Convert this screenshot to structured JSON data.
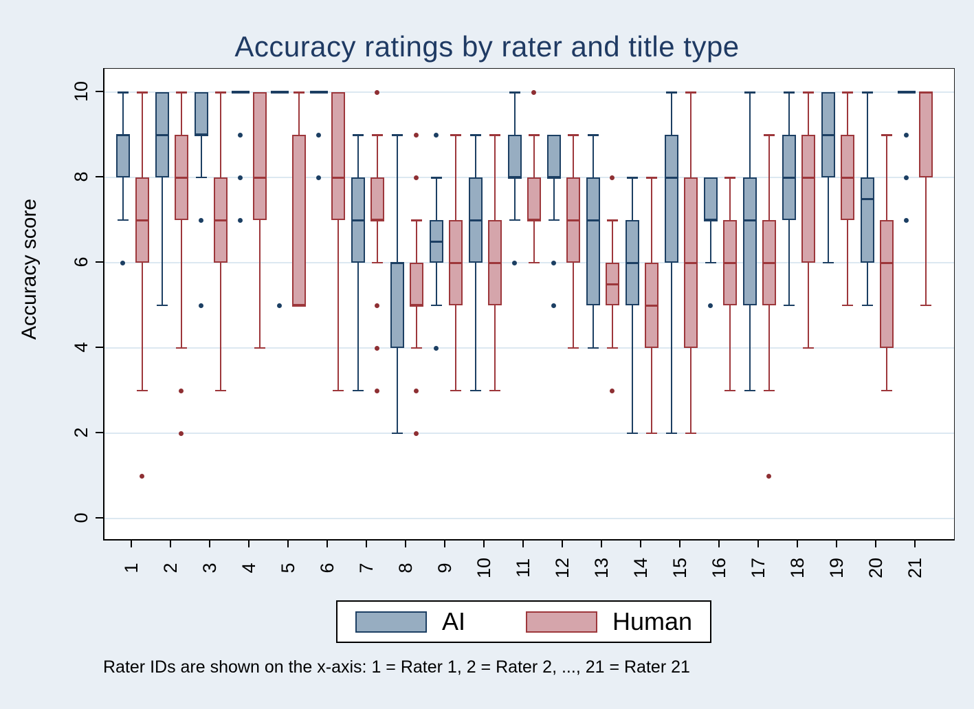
{
  "caption": "Rater IDs are shown on the x-axis: 1 = Rater 1, 2 = Rater 2, ..., 21 = Rater 21",
  "chart_data": {
    "type": "boxplot",
    "title": "Accuracy ratings by rater and title type",
    "ylabel": "Accuracy score",
    "xlabel": "",
    "ylim": [
      0,
      10
    ],
    "yticks": [
      0,
      2,
      4,
      6,
      8,
      10
    ],
    "grid": true,
    "legend_position": "bottom-center",
    "categories": [
      "1",
      "2",
      "3",
      "4",
      "5",
      "6",
      "7",
      "8",
      "9",
      "10",
      "11",
      "12",
      "13",
      "14",
      "15",
      "16",
      "17",
      "18",
      "19",
      "20",
      "21"
    ],
    "series": [
      {
        "name": "AI",
        "fill": "#97adc1",
        "line": "#1c3f63",
        "dot": "#1c3f63"
      },
      {
        "name": "Human",
        "fill": "#d5a5ab",
        "line": "#9d373b",
        "dot": "#8e2f33"
      }
    ],
    "colors": {
      "page_background": "#e9eff5",
      "plot_background": "#ffffff",
      "gridline": "#dce8f1",
      "title_text": "#1f3a63"
    },
    "boxes": [
      {
        "rater": "1",
        "ai": {
          "lo": 7,
          "q1": 8,
          "med": 9,
          "q3": 9,
          "hi": 10,
          "out": [
            6
          ]
        },
        "human": {
          "lo": 3,
          "q1": 6,
          "med": 7,
          "q3": 8,
          "hi": 10,
          "out": [
            1
          ]
        }
      },
      {
        "rater": "2",
        "ai": {
          "lo": 5,
          "q1": 8,
          "med": 9,
          "q3": 10,
          "hi": 10,
          "out": []
        },
        "human": {
          "lo": 4,
          "q1": 7,
          "med": 8,
          "q3": 9,
          "hi": 10,
          "out": [
            3,
            2
          ]
        }
      },
      {
        "rater": "3",
        "ai": {
          "lo": 8,
          "q1": 9,
          "med": 9,
          "q3": 10,
          "hi": 10,
          "out": [
            7,
            5
          ]
        },
        "human": {
          "lo": 3,
          "q1": 6,
          "med": 7,
          "q3": 8,
          "hi": 10,
          "out": []
        }
      },
      {
        "rater": "4",
        "ai": {
          "lo": 10,
          "q1": 10,
          "med": 10,
          "q3": 10,
          "hi": 10,
          "out": [
            9,
            8,
            7
          ]
        },
        "human": {
          "lo": 4,
          "q1": 7,
          "med": 8,
          "q3": 10,
          "hi": 10,
          "out": []
        }
      },
      {
        "rater": "5",
        "ai": {
          "lo": 10,
          "q1": 10,
          "med": 10,
          "q3": 10,
          "hi": 10,
          "out": [
            5
          ]
        },
        "human": {
          "lo": 5,
          "q1": 5,
          "med": 5,
          "q3": 9,
          "hi": 10,
          "out": []
        }
      },
      {
        "rater": "6",
        "ai": {
          "lo": 10,
          "q1": 10,
          "med": 10,
          "q3": 10,
          "hi": 10,
          "out": [
            9,
            8
          ]
        },
        "human": {
          "lo": 3,
          "q1": 7,
          "med": 8,
          "q3": 10,
          "hi": 10,
          "out": []
        }
      },
      {
        "rater": "7",
        "ai": {
          "lo": 3,
          "q1": 6,
          "med": 7,
          "q3": 8,
          "hi": 9,
          "out": []
        },
        "human": {
          "lo": 6,
          "q1": 7,
          "med": 7,
          "q3": 8,
          "hi": 9,
          "out": [
            10,
            5,
            4,
            3
          ]
        }
      },
      {
        "rater": "8",
        "ai": {
          "lo": 2,
          "q1": 4,
          "med": 6,
          "q3": 6,
          "hi": 9,
          "out": []
        },
        "human": {
          "lo": 4,
          "q1": 5,
          "med": 5,
          "q3": 6,
          "hi": 7,
          "out": [
            9,
            8,
            3,
            2
          ]
        }
      },
      {
        "rater": "9",
        "ai": {
          "lo": 5,
          "q1": 6,
          "med": 6.5,
          "q3": 7,
          "hi": 8,
          "out": [
            9,
            4
          ]
        },
        "human": {
          "lo": 3,
          "q1": 5,
          "med": 6,
          "q3": 7,
          "hi": 9,
          "out": []
        }
      },
      {
        "rater": "10",
        "ai": {
          "lo": 3,
          "q1": 6,
          "med": 7,
          "q3": 8,
          "hi": 9,
          "out": []
        },
        "human": {
          "lo": 3,
          "q1": 5,
          "med": 6,
          "q3": 7,
          "hi": 9,
          "out": []
        }
      },
      {
        "rater": "11",
        "ai": {
          "lo": 7,
          "q1": 8,
          "med": 8,
          "q3": 9,
          "hi": 10,
          "out": [
            6
          ]
        },
        "human": {
          "lo": 6,
          "q1": 7,
          "med": 7,
          "q3": 8,
          "hi": 9,
          "out": [
            10
          ]
        }
      },
      {
        "rater": "12",
        "ai": {
          "lo": 7,
          "q1": 8,
          "med": 8,
          "q3": 9,
          "hi": 9,
          "out": [
            6,
            5
          ]
        },
        "human": {
          "lo": 4,
          "q1": 6,
          "med": 7,
          "q3": 8,
          "hi": 9,
          "out": []
        }
      },
      {
        "rater": "13",
        "ai": {
          "lo": 4,
          "q1": 5,
          "med": 7,
          "q3": 8,
          "hi": 9,
          "out": []
        },
        "human": {
          "lo": 4,
          "q1": 5,
          "med": 5.5,
          "q3": 6,
          "hi": 7,
          "out": [
            8,
            3
          ]
        }
      },
      {
        "rater": "14",
        "ai": {
          "lo": 2,
          "q1": 5,
          "med": 6,
          "q3": 7,
          "hi": 8,
          "out": []
        },
        "human": {
          "lo": 2,
          "q1": 4,
          "med": 5,
          "q3": 6,
          "hi": 8,
          "out": []
        }
      },
      {
        "rater": "15",
        "ai": {
          "lo": 2,
          "q1": 6,
          "med": 8,
          "q3": 9,
          "hi": 10,
          "out": []
        },
        "human": {
          "lo": 2,
          "q1": 4,
          "med": 6,
          "q3": 8,
          "hi": 10,
          "out": []
        }
      },
      {
        "rater": "16",
        "ai": {
          "lo": 6,
          "q1": 7,
          "med": 7,
          "q3": 8,
          "hi": 8,
          "out": [
            5
          ]
        },
        "human": {
          "lo": 3,
          "q1": 5,
          "med": 6,
          "q3": 7,
          "hi": 8,
          "out": []
        }
      },
      {
        "rater": "17",
        "ai": {
          "lo": 3,
          "q1": 5,
          "med": 7,
          "q3": 8,
          "hi": 10,
          "out": []
        },
        "human": {
          "lo": 3,
          "q1": 5,
          "med": 6,
          "q3": 7,
          "hi": 9,
          "out": [
            1
          ]
        }
      },
      {
        "rater": "18",
        "ai": {
          "lo": 5,
          "q1": 7,
          "med": 8,
          "q3": 9,
          "hi": 10,
          "out": []
        },
        "human": {
          "lo": 4,
          "q1": 6,
          "med": 8,
          "q3": 9,
          "hi": 10,
          "out": []
        }
      },
      {
        "rater": "19",
        "ai": {
          "lo": 6,
          "q1": 8,
          "med": 9,
          "q3": 10,
          "hi": 10,
          "out": []
        },
        "human": {
          "lo": 5,
          "q1": 7,
          "med": 8,
          "q3": 9,
          "hi": 10,
          "out": []
        }
      },
      {
        "rater": "20",
        "ai": {
          "lo": 5,
          "q1": 6,
          "med": 7.5,
          "q3": 8,
          "hi": 10,
          "out": []
        },
        "human": {
          "lo": 3,
          "q1": 4,
          "med": 6,
          "q3": 7,
          "hi": 9,
          "out": []
        }
      },
      {
        "rater": "21",
        "ai": {
          "lo": 10,
          "q1": 10,
          "med": 10,
          "q3": 10,
          "hi": 10,
          "out": [
            9,
            8,
            7
          ]
        },
        "human": {
          "lo": 5,
          "q1": 8,
          "med": 10,
          "q3": 10,
          "hi": 10,
          "out": []
        }
      }
    ]
  }
}
